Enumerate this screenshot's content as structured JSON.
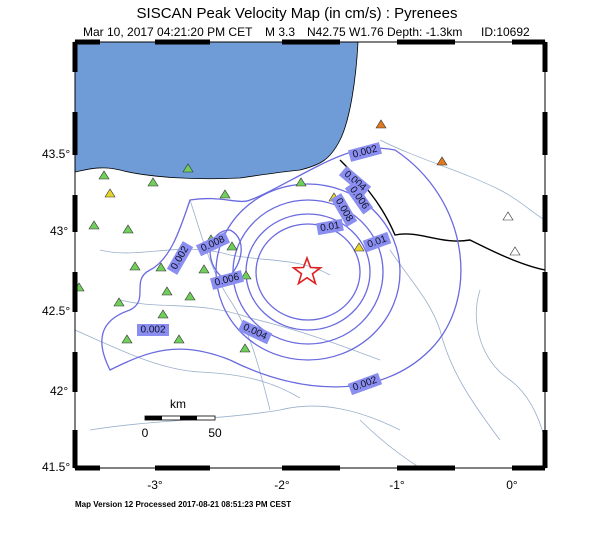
{
  "header": {
    "title": "SISCAN Peak Velocity Map (in cm/s) : Pyrenees",
    "date": "Mar 10, 2017 04:21:20 PM CET",
    "magnitude": "M 3.3",
    "location": "N42.75 W1.76",
    "depth": "Depth: -1.3km",
    "id": "ID:10692"
  },
  "axes": {
    "latitudes": [
      "43.5°",
      "43°",
      "42.5°",
      "42°",
      "41.5°"
    ],
    "longitudes": [
      "-3°",
      "-2°",
      "-1°",
      "0°"
    ]
  },
  "contour_labels": [
    "0.002",
    "0.004",
    "0.006",
    "0.008",
    "0.01",
    "0.01",
    "0.008",
    "0.006",
    "0.004",
    "0.002",
    "0.002",
    "0.002"
  ],
  "scale_bar": {
    "unit": "km",
    "start": "0",
    "end": "50"
  },
  "footer": "Map Version 12 Processed 2017-08-21 08:51:23 PM CEST"
}
